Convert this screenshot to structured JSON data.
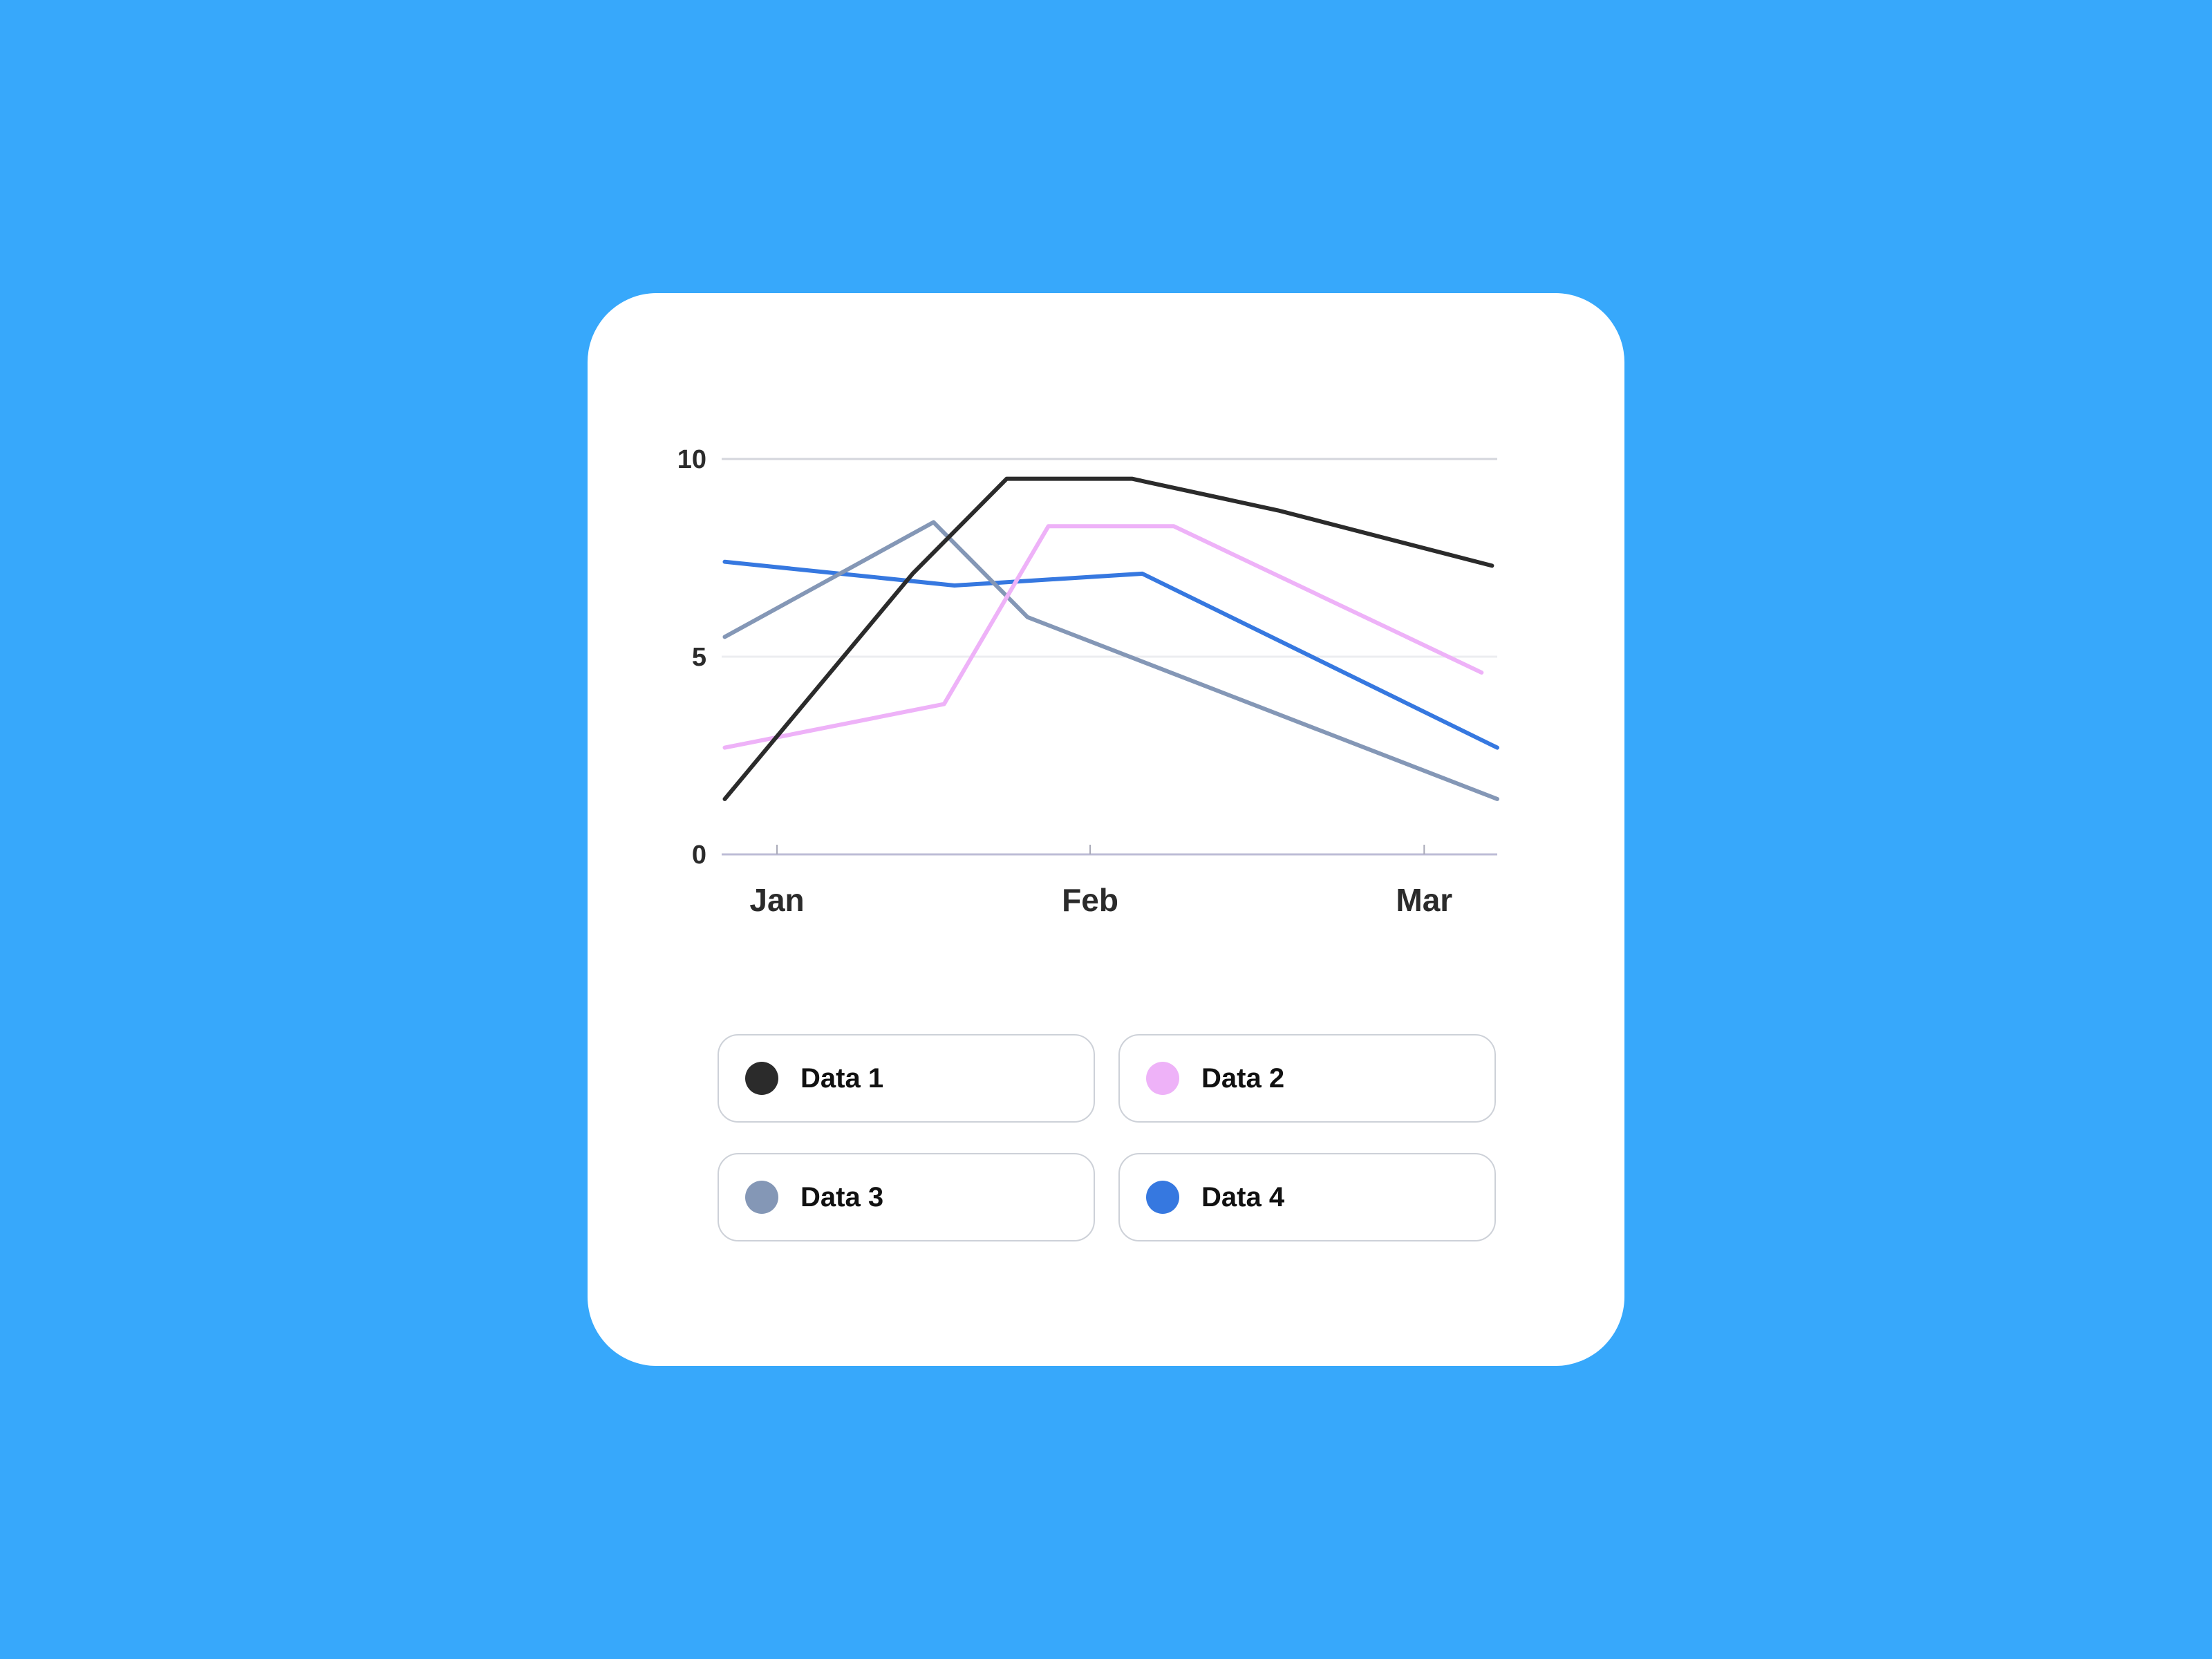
{
  "chart_data": {
    "type": "line",
    "title": "",
    "xlabel": "",
    "ylabel": "",
    "ylim": [
      0,
      10
    ],
    "y_ticks": [
      "0",
      "5",
      "10"
    ],
    "x_tick_labels": [
      "Jan",
      "Feb",
      "Mar"
    ],
    "x_tick_positions": [
      1,
      4,
      7.2
    ],
    "xlim": [
      0.47,
      7.9
    ],
    "grid": true,
    "legend_position": "bottom",
    "series": [
      {
        "name": "Data 1",
        "color": "#2B2B2B",
        "points": [
          [
            0.5,
            1.4
          ],
          [
            2.3,
            7.1
          ],
          [
            3.2,
            9.5
          ],
          [
            4.4,
            9.5
          ],
          [
            5.8,
            8.7
          ],
          [
            7.85,
            7.3
          ]
        ]
      },
      {
        "name": "Data 2",
        "color": "#EEB2F8",
        "points": [
          [
            0.5,
            2.7
          ],
          [
            2.6,
            3.8
          ],
          [
            3.6,
            8.3
          ],
          [
            4.8,
            8.3
          ],
          [
            7.75,
            4.6
          ]
        ]
      },
      {
        "name": "Data 3",
        "color": "#8497B6",
        "points": [
          [
            0.5,
            5.5
          ],
          [
            2.5,
            8.4
          ],
          [
            3.4,
            6.0
          ],
          [
            7.9,
            1.4
          ]
        ]
      },
      {
        "name": "Data 4",
        "color": "#3678E0",
        "points": [
          [
            0.5,
            7.4
          ],
          [
            2.7,
            6.8
          ],
          [
            4.5,
            7.1
          ],
          [
            7.9,
            2.7
          ]
        ]
      }
    ]
  }
}
